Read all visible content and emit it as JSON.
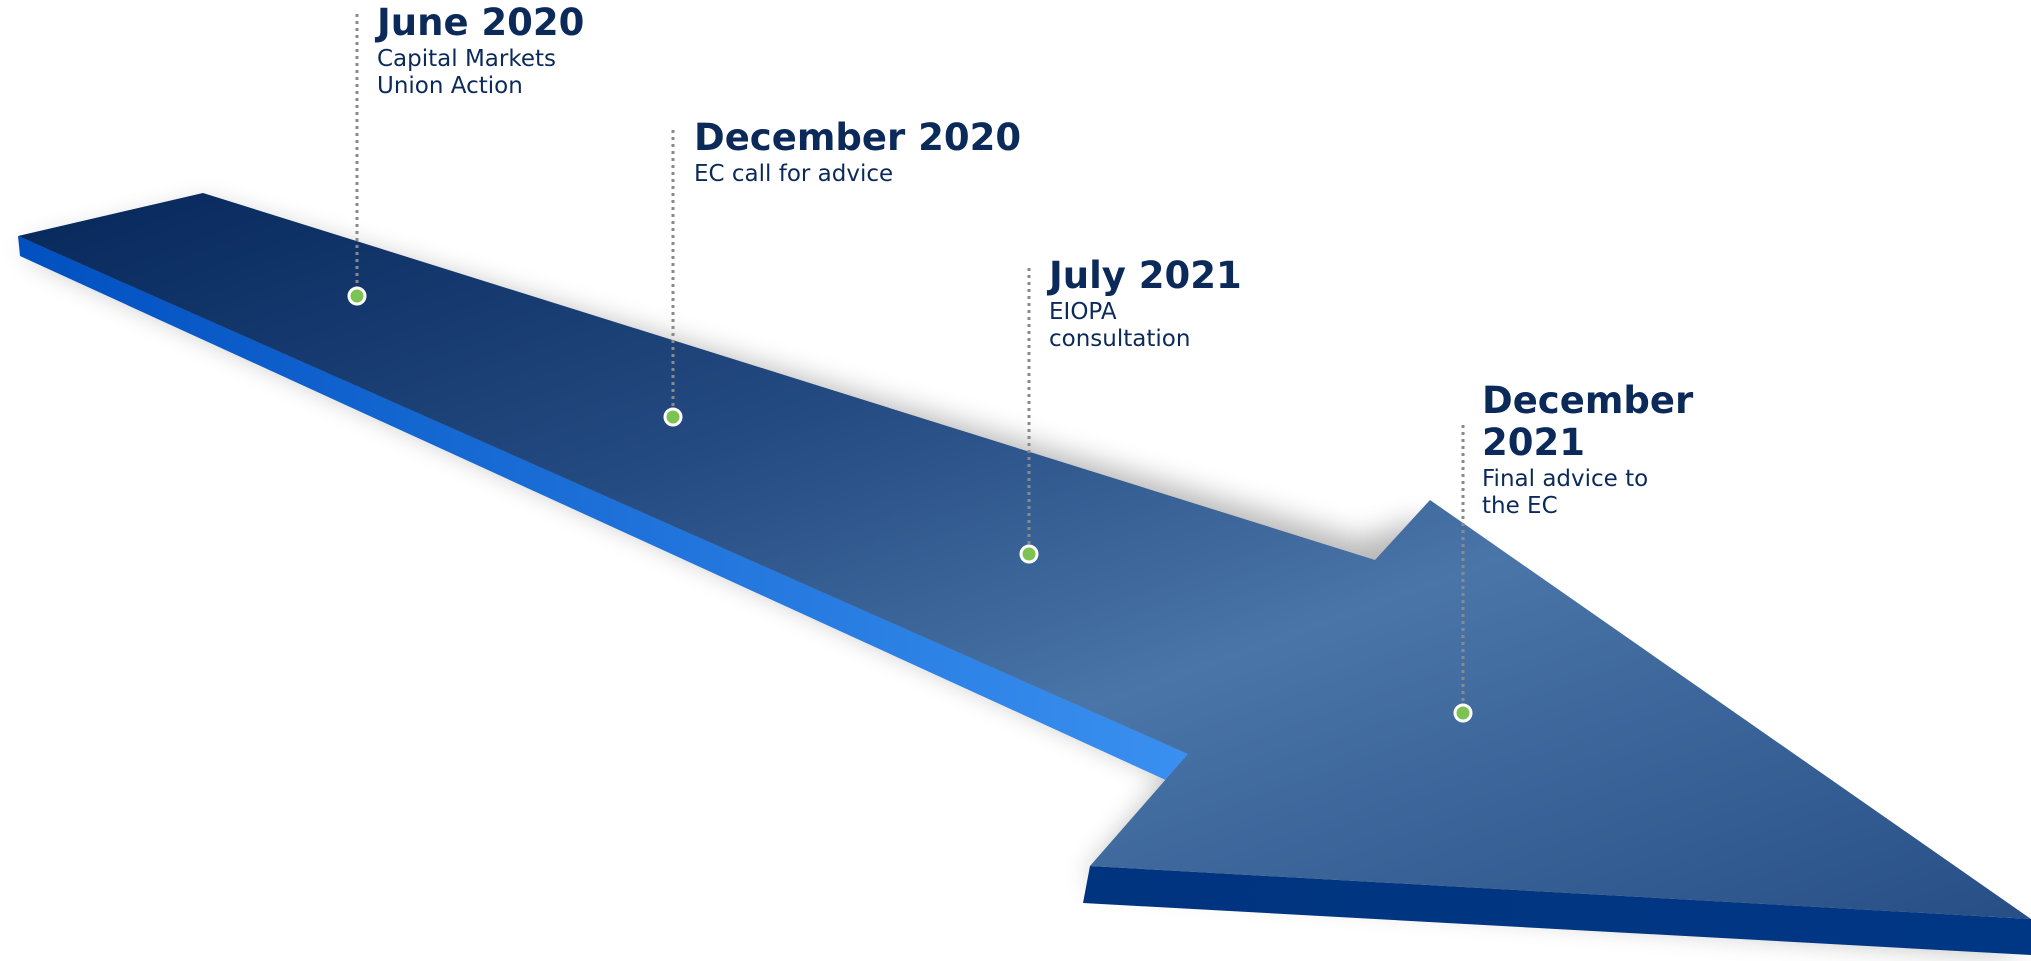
{
  "milestones": [
    {
      "date": "June 2020",
      "description": [
        "Capital Markets",
        "Union Action"
      ]
    },
    {
      "date": "December 2020",
      "description": [
        "EC call for advice"
      ]
    },
    {
      "date": "July 2021",
      "description": [
        "EIOPA",
        "consultation"
      ]
    },
    {
      "date": "December 2021",
      "description": [
        "Final advice to",
        "the EC"
      ]
    }
  ],
  "colors": {
    "text": "#0b2a5a",
    "arrow_top_dark": "#0a2a5c",
    "arrow_top_light": "#4a75a8",
    "arrow_side": "#2b7de6",
    "arrow_front": "#00347f",
    "marker": "#7cc354",
    "connector": "#8a8a8a"
  }
}
